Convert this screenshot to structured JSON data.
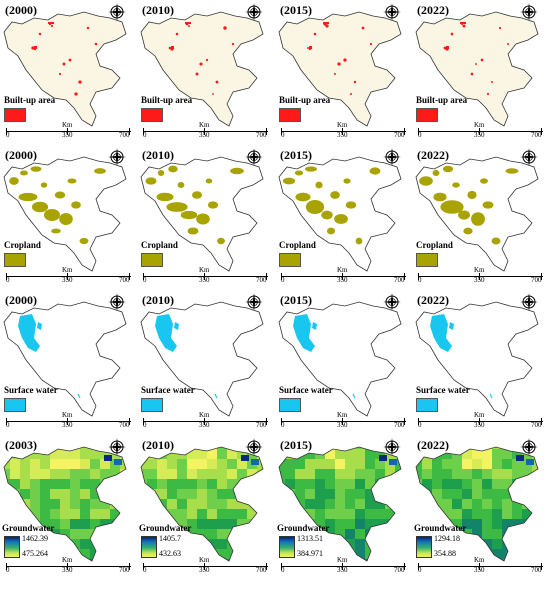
{
  "rows": [
    {
      "theme": "builtup",
      "legend_label": "Built-up area",
      "swatch_color": "#ff1a1a",
      "years": [
        "(2000)",
        "(2010)",
        "(2015)",
        "(2022)"
      ]
    },
    {
      "theme": "cropland",
      "legend_label": "Cropland",
      "swatch_color": "#a8a300",
      "years": [
        "(2000)",
        "(2010)",
        "(2015)",
        "(2022)"
      ]
    },
    {
      "theme": "water",
      "legend_label": "Surface water",
      "swatch_color": "#19c6f0",
      "years": [
        "(2000)",
        "(2010)",
        "(2015)",
        "(2022)"
      ]
    },
    {
      "theme": "groundwater",
      "legend_label": "Groundwater",
      "years": [
        "(2003)",
        "(2010)",
        "(2015)",
        "(2022)"
      ],
      "max_values": [
        "1462.39",
        "1405.7",
        "1313.51",
        "1294.18"
      ],
      "min_values": [
        "475.264",
        "432.63",
        "384.971",
        "354.88"
      ]
    }
  ],
  "scale_bar": {
    "unit": "Km",
    "labels": [
      "0",
      "350",
      "700"
    ]
  },
  "compass_icon": "north-arrow-compass-icon",
  "colors": {
    "builtup": "#ff1a1a",
    "cropland": "#a8a300",
    "water": "#19c6f0",
    "basin_fill_builtup": "#fbf6e3",
    "outline": "#333333"
  }
}
